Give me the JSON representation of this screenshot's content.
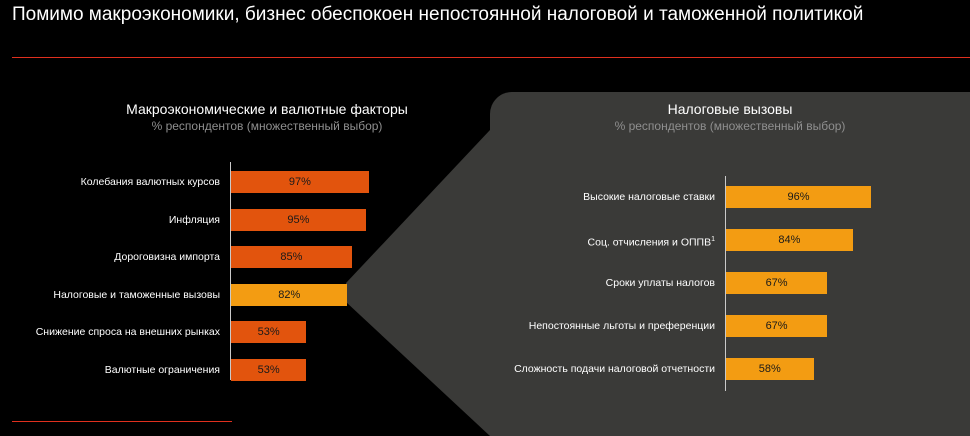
{
  "title": "Помимо макроэкономики, бизнес обеспокоен непостоянной налоговой и таможенной политикой",
  "colors": {
    "accent_red": "#e0301e",
    "bar_dark_orange": "#e2540d",
    "bar_orange": "#f39c12",
    "panel_gray": "#3a3a38"
  },
  "chart_data": [
    {
      "type": "bar",
      "orientation": "horizontal",
      "title": "Макроэкономические и валютные факторы",
      "subtitle": "% респондентов (множественный выбор)",
      "xlim": [
        0,
        100
      ],
      "categories": [
        "Колебания валютных курсов",
        "Инфляция",
        "Дороговизна импорта",
        "Налоговые и таможенные вызовы",
        "Снижение спроса на внешних рынках",
        "Валютные ограничения"
      ],
      "values": [
        97,
        95,
        85,
        82,
        53,
        53
      ],
      "value_labels": [
        "97%",
        "95%",
        "85%",
        "82%",
        "53%",
        "53%"
      ],
      "highlight_index": 3
    },
    {
      "type": "bar",
      "orientation": "horizontal",
      "title": "Налоговые вызовы",
      "subtitle": "% респондентов (множественный выбор)",
      "xlim": [
        0,
        100
      ],
      "categories": [
        "Высокие налоговые ставки",
        "Соц. отчисления и ОППВ",
        "Сроки уплаты налогов",
        "Непостоянные льготы и преференции",
        "Сложность подачи налоговой отчетности"
      ],
      "category_footnotes": [
        "",
        "1",
        "",
        "",
        ""
      ],
      "values": [
        96,
        84,
        67,
        67,
        58
      ],
      "value_labels": [
        "96%",
        "84%",
        "67%",
        "67%",
        "58%"
      ]
    }
  ]
}
